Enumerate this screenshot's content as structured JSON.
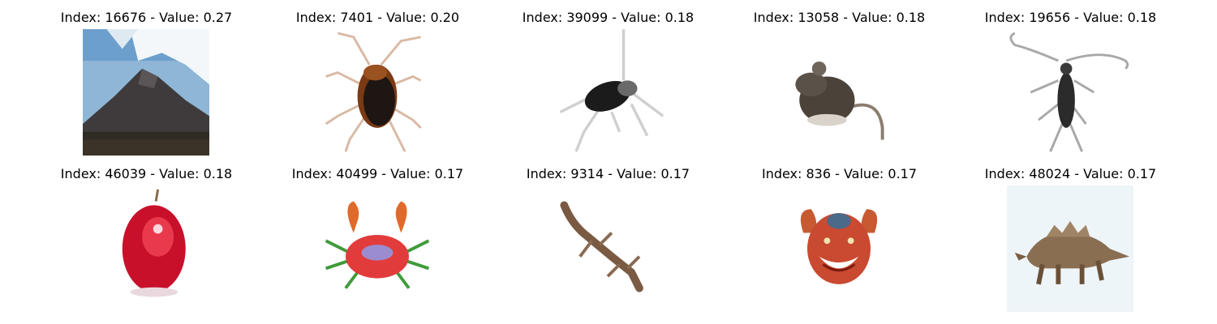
{
  "grid": {
    "items": [
      {
        "index": "16676",
        "value": "0.27",
        "title": "Index: 16676 - Value: 0.27",
        "image": "mountain-photo"
      },
      {
        "index": "7401",
        "value": "0.20",
        "title": "Index: 7401 - Value: 0.20",
        "image": "cockroach-photo"
      },
      {
        "index": "39099",
        "value": "0.18",
        "title": "Index: 39099 - Value: 0.18",
        "image": "beetle-photo"
      },
      {
        "index": "13058",
        "value": "0.18",
        "title": "Index: 13058 - Value: 0.18",
        "image": "rat-photo"
      },
      {
        "index": "19656",
        "value": "0.18",
        "title": "Index: 19656 - Value: 0.18",
        "image": "longhorn-beetle-photo"
      },
      {
        "index": "46039",
        "value": "0.18",
        "title": "Index: 46039 - Value: 0.18",
        "image": "apple-photo"
      },
      {
        "index": "40499",
        "value": "0.17",
        "title": "Index: 40499 - Value: 0.17",
        "image": "crab-photo"
      },
      {
        "index": "9314",
        "value": "0.17",
        "title": "Index: 9314 - Value: 0.17",
        "image": "lizard-photo"
      },
      {
        "index": "836",
        "value": "0.17",
        "title": "Index: 836 - Value: 0.17",
        "image": "crab-face-photo"
      },
      {
        "index": "48024",
        "value": "0.17",
        "title": "Index: 48024 - Value: 0.17",
        "image": "dinosaur-photo"
      }
    ]
  }
}
